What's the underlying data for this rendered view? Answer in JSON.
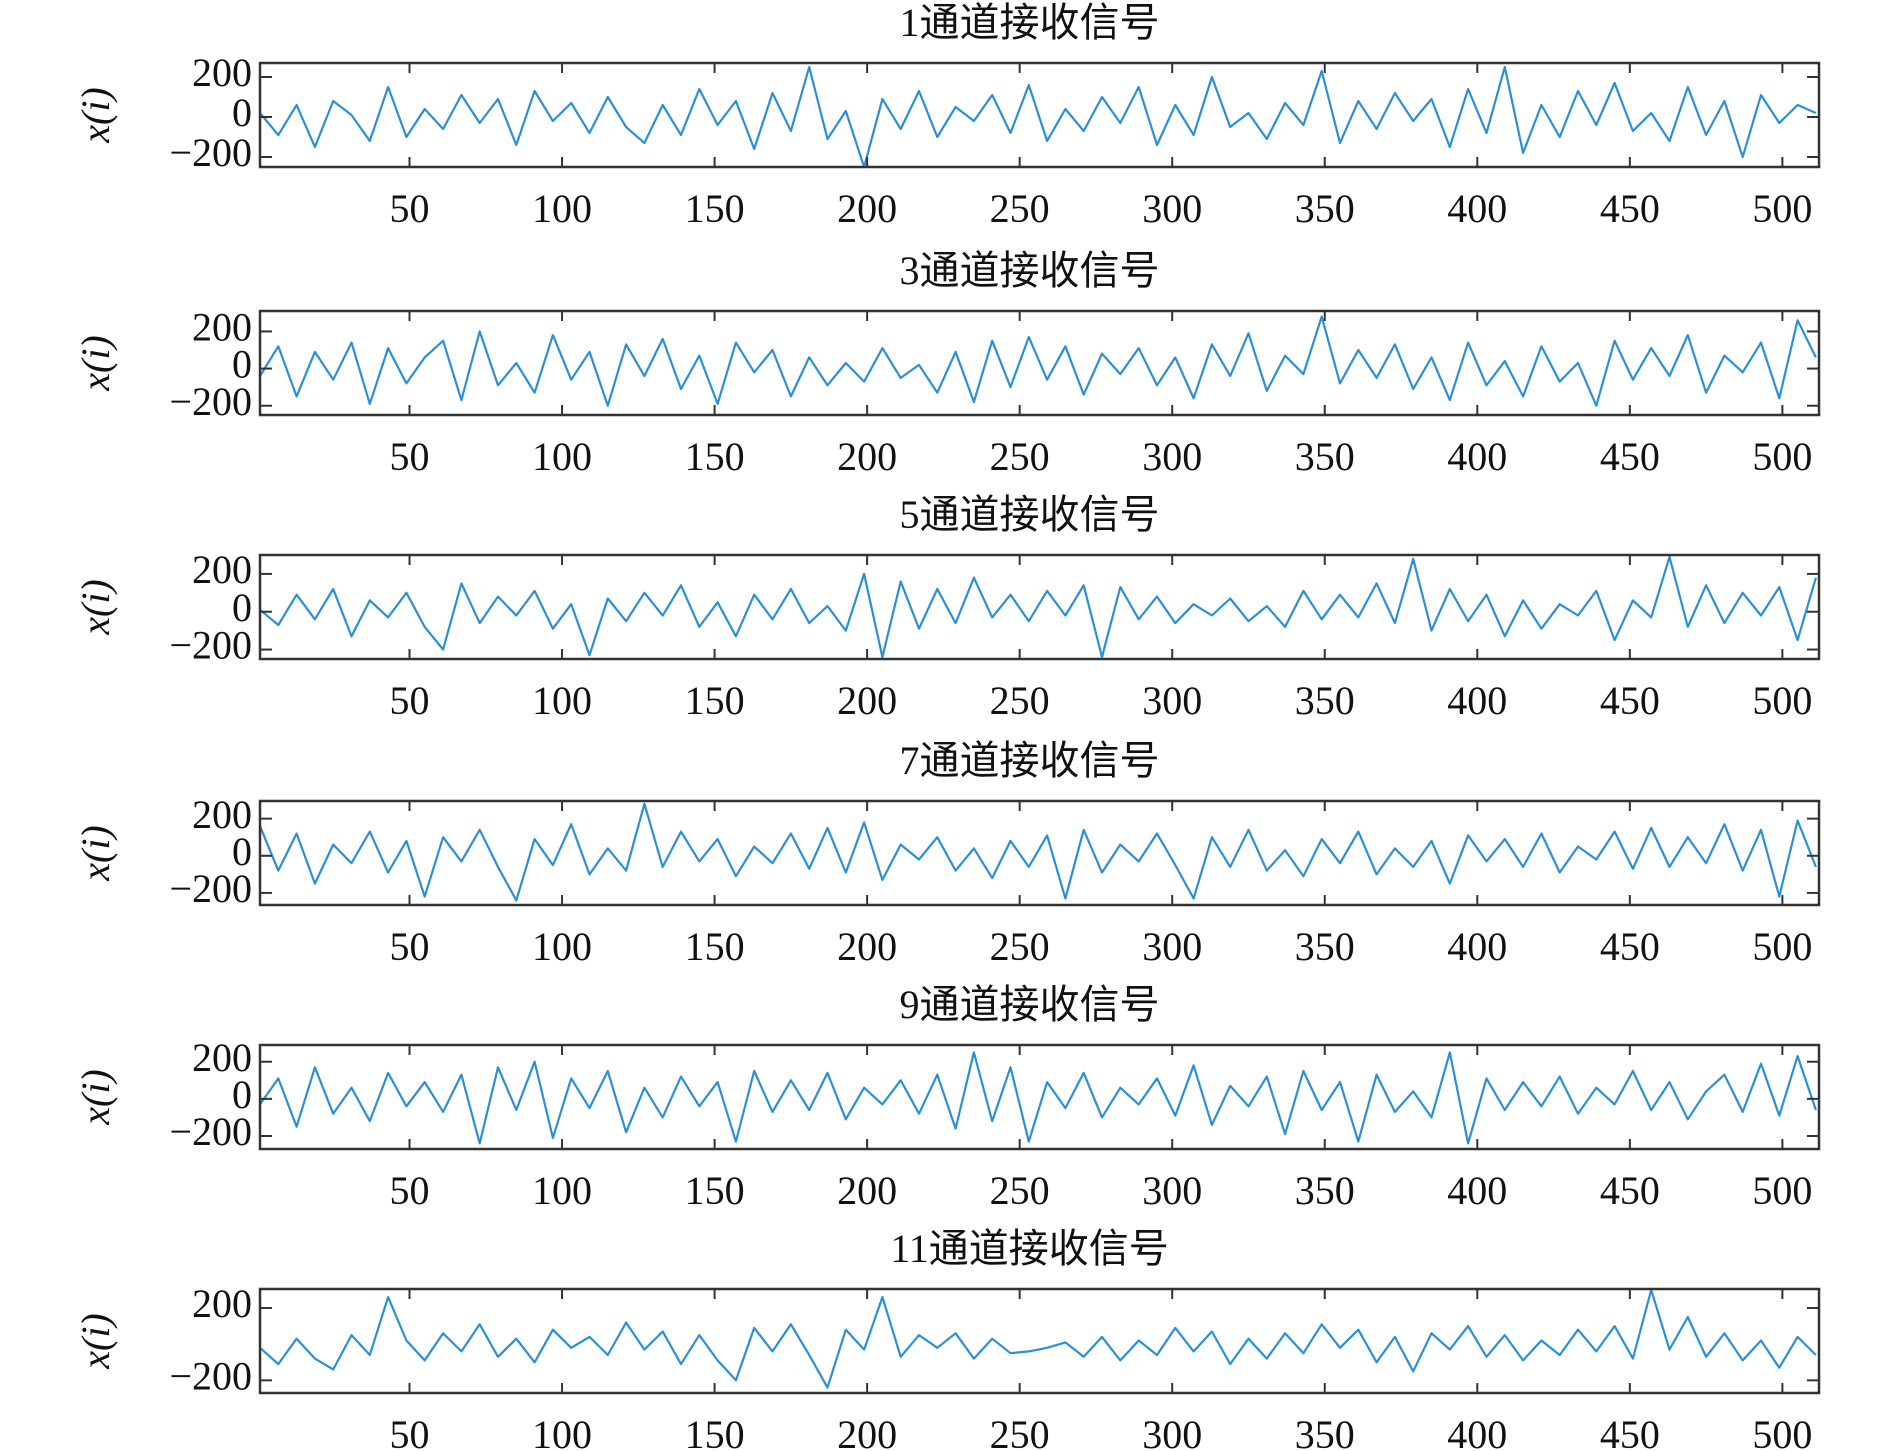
{
  "chart_data": [
    {
      "type": "line",
      "title": "1通道接收信号",
      "ylabel": "x(i)",
      "color": "#2b8fd8",
      "x": [
        1,
        7,
        13,
        19,
        25,
        31,
        37,
        43,
        49,
        55,
        61,
        67,
        73,
        79,
        85,
        91,
        97,
        103,
        109,
        115,
        121,
        127,
        133,
        139,
        145,
        151,
        157,
        163,
        169,
        175,
        181,
        187,
        193,
        199,
        205,
        211,
        217,
        223,
        229,
        235,
        241,
        247,
        253,
        259,
        265,
        271,
        277,
        283,
        289,
        295,
        301,
        307,
        313,
        319,
        325,
        331,
        337,
        343,
        349,
        355,
        361,
        367,
        373,
        379,
        385,
        391,
        397,
        403,
        409,
        415,
        421,
        427,
        433,
        439,
        445,
        451,
        457,
        463,
        469,
        475,
        481,
        487,
        493,
        499,
        505,
        511
      ],
      "values": [
        20,
        -90,
        60,
        -150,
        80,
        10,
        -120,
        150,
        -100,
        40,
        -60,
        110,
        -30,
        90,
        -140,
        130,
        -20,
        70,
        -80,
        100,
        -50,
        -130,
        60,
        -90,
        140,
        -40,
        80,
        -160,
        120,
        -70,
        250,
        -110,
        30,
        -250,
        90,
        -60,
        130,
        -100,
        50,
        -20,
        110,
        -80,
        160,
        -120,
        40,
        -70,
        100,
        -30,
        150,
        -140,
        60,
        -90,
        200,
        -50,
        20,
        -110,
        70,
        -40,
        230,
        -130,
        80,
        -60,
        120,
        -20,
        90,
        -150,
        140,
        -80,
        250,
        -180,
        60,
        -100,
        130,
        -40,
        170,
        -70,
        20,
        -120,
        150,
        -90,
        80,
        -200,
        110,
        -30,
        60,
        20
      ],
      "xlim": [
        1,
        512
      ],
      "xticks": [
        50,
        100,
        150,
        200,
        250,
        300,
        350,
        400,
        450,
        500
      ],
      "ylim": [
        -250,
        270
      ],
      "yticks": [
        {
          "value": -200,
          "label": "−200"
        },
        0,
        200
      ]
    },
    {
      "type": "line",
      "title": "3通道接收信号",
      "ylabel": "x(i)",
      "color": "#2b8fd8",
      "x": [
        1,
        7,
        13,
        19,
        25,
        31,
        37,
        43,
        49,
        55,
        61,
        67,
        73,
        79,
        85,
        91,
        97,
        103,
        109,
        115,
        121,
        127,
        133,
        139,
        145,
        151,
        157,
        163,
        169,
        175,
        181,
        187,
        193,
        199,
        205,
        211,
        217,
        223,
        229,
        235,
        241,
        247,
        253,
        259,
        265,
        271,
        277,
        283,
        289,
        295,
        301,
        307,
        313,
        319,
        325,
        331,
        337,
        343,
        349,
        355,
        361,
        367,
        373,
        379,
        385,
        391,
        397,
        403,
        409,
        415,
        421,
        427,
        433,
        439,
        445,
        451,
        457,
        463,
        469,
        475,
        481,
        487,
        493,
        499,
        505,
        511
      ],
      "values": [
        -40,
        120,
        -150,
        90,
        -60,
        140,
        -190,
        110,
        -80,
        60,
        150,
        -170,
        200,
        -90,
        30,
        -130,
        180,
        -60,
        90,
        -200,
        130,
        -40,
        160,
        -110,
        70,
        -190,
        140,
        -20,
        100,
        -150,
        60,
        -90,
        30,
        -70,
        110,
        -50,
        20,
        -130,
        90,
        -180,
        150,
        -100,
        170,
        -60,
        120,
        -140,
        80,
        -30,
        110,
        -90,
        60,
        -160,
        130,
        -40,
        190,
        -120,
        70,
        -30,
        280,
        -80,
        100,
        -50,
        130,
        -110,
        60,
        -170,
        140,
        -90,
        40,
        -150,
        120,
        -70,
        30,
        -200,
        150,
        -60,
        110,
        -40,
        180,
        -130,
        70,
        -20,
        140,
        -160,
        260,
        60
      ],
      "xlim": [
        1,
        512
      ],
      "xticks": [
        50,
        100,
        150,
        200,
        250,
        300,
        350,
        400,
        450,
        500
      ],
      "ylim": [
        -250,
        310
      ],
      "yticks": [
        {
          "value": -200,
          "label": "−200"
        },
        0,
        200
      ]
    },
    {
      "type": "line",
      "title": "5通道接收信号",
      "ylabel": "x(i)",
      "color": "#2b8fd8",
      "x": [
        1,
        7,
        13,
        19,
        25,
        31,
        37,
        43,
        49,
        55,
        61,
        67,
        73,
        79,
        85,
        91,
        97,
        103,
        109,
        115,
        121,
        127,
        133,
        139,
        145,
        151,
        157,
        163,
        169,
        175,
        181,
        187,
        193,
        199,
        205,
        211,
        217,
        223,
        229,
        235,
        241,
        247,
        253,
        259,
        265,
        271,
        277,
        283,
        289,
        295,
        301,
        307,
        313,
        319,
        325,
        331,
        337,
        343,
        349,
        355,
        361,
        367,
        373,
        379,
        385,
        391,
        397,
        403,
        409,
        415,
        421,
        427,
        433,
        439,
        445,
        451,
        457,
        463,
        469,
        475,
        481,
        487,
        493,
        499,
        505,
        511
      ],
      "values": [
        10,
        -70,
        90,
        -40,
        120,
        -130,
        60,
        -30,
        100,
        -80,
        -200,
        150,
        -60,
        80,
        -20,
        110,
        -90,
        40,
        -230,
        70,
        -50,
        100,
        -20,
        140,
        -80,
        50,
        -130,
        90,
        -40,
        120,
        -60,
        30,
        -100,
        200,
        -240,
        160,
        -90,
        120,
        -60,
        180,
        -30,
        90,
        -50,
        110,
        -20,
        140,
        -240,
        130,
        -40,
        80,
        -60,
        40,
        -20,
        70,
        -50,
        30,
        -80,
        110,
        -40,
        90,
        -30,
        150,
        -60,
        280,
        -100,
        120,
        -50,
        90,
        -130,
        60,
        -90,
        40,
        -20,
        110,
        -150,
        60,
        -30,
        290,
        -80,
        140,
        -60,
        100,
        -20,
        130,
        -150,
        180
      ],
      "xlim": [
        1,
        512
      ],
      "xticks": [
        50,
        100,
        150,
        200,
        250,
        300,
        350,
        400,
        450,
        500
      ],
      "ylim": [
        -250,
        300
      ],
      "yticks": [
        {
          "value": -200,
          "label": "−200"
        },
        0,
        200
      ]
    },
    {
      "type": "line",
      "title": "7通道接收信号",
      "ylabel": "x(i)",
      "color": "#2b8fd8",
      "x": [
        1,
        7,
        13,
        19,
        25,
        31,
        37,
        43,
        49,
        55,
        61,
        67,
        73,
        79,
        85,
        91,
        97,
        103,
        109,
        115,
        121,
        127,
        133,
        139,
        145,
        151,
        157,
        163,
        169,
        175,
        181,
        187,
        193,
        199,
        205,
        211,
        217,
        223,
        229,
        235,
        241,
        247,
        253,
        259,
        265,
        271,
        277,
        283,
        289,
        295,
        301,
        307,
        313,
        319,
        325,
        331,
        337,
        343,
        349,
        355,
        361,
        367,
        373,
        379,
        385,
        391,
        397,
        403,
        409,
        415,
        421,
        427,
        433,
        439,
        445,
        451,
        457,
        463,
        469,
        475,
        481,
        487,
        493,
        499,
        505,
        511
      ],
      "values": [
        160,
        -80,
        120,
        -150,
        60,
        -40,
        130,
        -90,
        80,
        -220,
        100,
        -30,
        140,
        -60,
        -240,
        90,
        -50,
        170,
        -100,
        40,
        -80,
        280,
        -60,
        130,
        -30,
        90,
        -110,
        50,
        -40,
        120,
        -70,
        150,
        -90,
        180,
        -130,
        60,
        -20,
        100,
        -80,
        40,
        -120,
        80,
        -60,
        110,
        -230,
        140,
        -90,
        60,
        -30,
        120,
        -50,
        -230,
        100,
        -60,
        140,
        -80,
        30,
        -110,
        90,
        -40,
        130,
        -100,
        40,
        -60,
        80,
        -150,
        110,
        -30,
        90,
        -60,
        120,
        -90,
        50,
        -20,
        130,
        -70,
        150,
        -60,
        100,
        -40,
        170,
        -80,
        140,
        -220,
        190,
        -60
      ],
      "xlim": [
        1,
        512
      ],
      "xticks": [
        50,
        100,
        150,
        200,
        250,
        300,
        350,
        400,
        450,
        500
      ],
      "ylim": [
        -265,
        295
      ],
      "yticks": [
        {
          "value": -200,
          "label": "−200"
        },
        0,
        200
      ]
    },
    {
      "type": "line",
      "title": "9通道接收信号",
      "ylabel": "x(i)",
      "color": "#2b8fd8",
      "x": [
        1,
        7,
        13,
        19,
        25,
        31,
        37,
        43,
        49,
        55,
        61,
        67,
        73,
        79,
        85,
        91,
        97,
        103,
        109,
        115,
        121,
        127,
        133,
        139,
        145,
        151,
        157,
        163,
        169,
        175,
        181,
        187,
        193,
        199,
        205,
        211,
        217,
        223,
        229,
        235,
        241,
        247,
        253,
        259,
        265,
        271,
        277,
        283,
        289,
        295,
        301,
        307,
        313,
        319,
        325,
        331,
        337,
        343,
        349,
        355,
        361,
        367,
        373,
        379,
        385,
        391,
        397,
        403,
        409,
        415,
        421,
        427,
        433,
        439,
        445,
        451,
        457,
        463,
        469,
        475,
        481,
        487,
        493,
        499,
        505,
        511
      ],
      "values": [
        -30,
        110,
        -150,
        170,
        -80,
        60,
        -120,
        140,
        -40,
        90,
        -70,
        130,
        -240,
        170,
        -60,
        200,
        -210,
        110,
        -50,
        150,
        -180,
        60,
        -100,
        120,
        -40,
        90,
        -230,
        150,
        -70,
        100,
        -60,
        140,
        -110,
        60,
        -30,
        100,
        -80,
        130,
        -160,
        250,
        -120,
        170,
        -230,
        90,
        -50,
        140,
        -100,
        60,
        -30,
        110,
        -90,
        180,
        -140,
        70,
        -40,
        120,
        -190,
        150,
        -60,
        90,
        -230,
        130,
        -70,
        40,
        -100,
        250,
        -240,
        110,
        -60,
        90,
        -40,
        120,
        -80,
        60,
        -30,
        150,
        -60,
        90,
        -110,
        40,
        130,
        -70,
        190,
        -90,
        230,
        -60
      ],
      "xlim": [
        1,
        512
      ],
      "xticks": [
        50,
        100,
        150,
        200,
        250,
        300,
        350,
        400,
        450,
        500
      ],
      "ylim": [
        -270,
        290
      ],
      "yticks": [
        {
          "value": -200,
          "label": "−200"
        },
        0,
        200
      ]
    },
    {
      "type": "line",
      "title": "11通道接收信号",
      "ylabel": "x(i)",
      "color": "#2b8fd8",
      "x": [
        1,
        7,
        13,
        19,
        25,
        31,
        37,
        43,
        49,
        55,
        61,
        67,
        73,
        79,
        85,
        91,
        97,
        103,
        109,
        115,
        121,
        127,
        133,
        139,
        145,
        151,
        157,
        163,
        169,
        175,
        181,
        187,
        193,
        199,
        205,
        211,
        217,
        223,
        229,
        235,
        241,
        247,
        253,
        259,
        265,
        271,
        277,
        283,
        289,
        295,
        301,
        307,
        313,
        319,
        325,
        331,
        337,
        343,
        349,
        355,
        361,
        367,
        373,
        379,
        385,
        391,
        397,
        403,
        409,
        415,
        421,
        427,
        433,
        439,
        445,
        451,
        457,
        463,
        469,
        475,
        481,
        487,
        493,
        499,
        505,
        511
      ],
      "values": [
        -20,
        -110,
        30,
        -80,
        -140,
        50,
        -60,
        260,
        20,
        -90,
        60,
        -40,
        110,
        -70,
        30,
        -100,
        80,
        -20,
        40,
        -60,
        120,
        -30,
        70,
        -110,
        50,
        -90,
        -200,
        90,
        -40,
        110,
        -60,
        -240,
        80,
        -30,
        260,
        -70,
        50,
        -20,
        60,
        -80,
        30,
        -50,
        -40,
        -20,
        10,
        -70,
        40,
        -90,
        20,
        -60,
        90,
        -40,
        70,
        -110,
        30,
        -80,
        60,
        -50,
        110,
        -20,
        80,
        -100,
        40,
        -150,
        60,
        -30,
        100,
        -70,
        50,
        -90,
        20,
        -60,
        80,
        -40,
        100,
        -80,
        300,
        -30,
        150,
        -70,
        60,
        -90,
        20,
        -130,
        40,
        -60
      ],
      "xlim": [
        1,
        512
      ],
      "xticks": [
        50,
        100,
        150,
        200,
        250,
        300,
        350,
        400,
        450,
        500
      ],
      "ylim": [
        -270,
        305
      ],
      "yticks": [
        {
          "value": -200,
          "label": "−200"
        },
        200
      ]
    }
  ]
}
